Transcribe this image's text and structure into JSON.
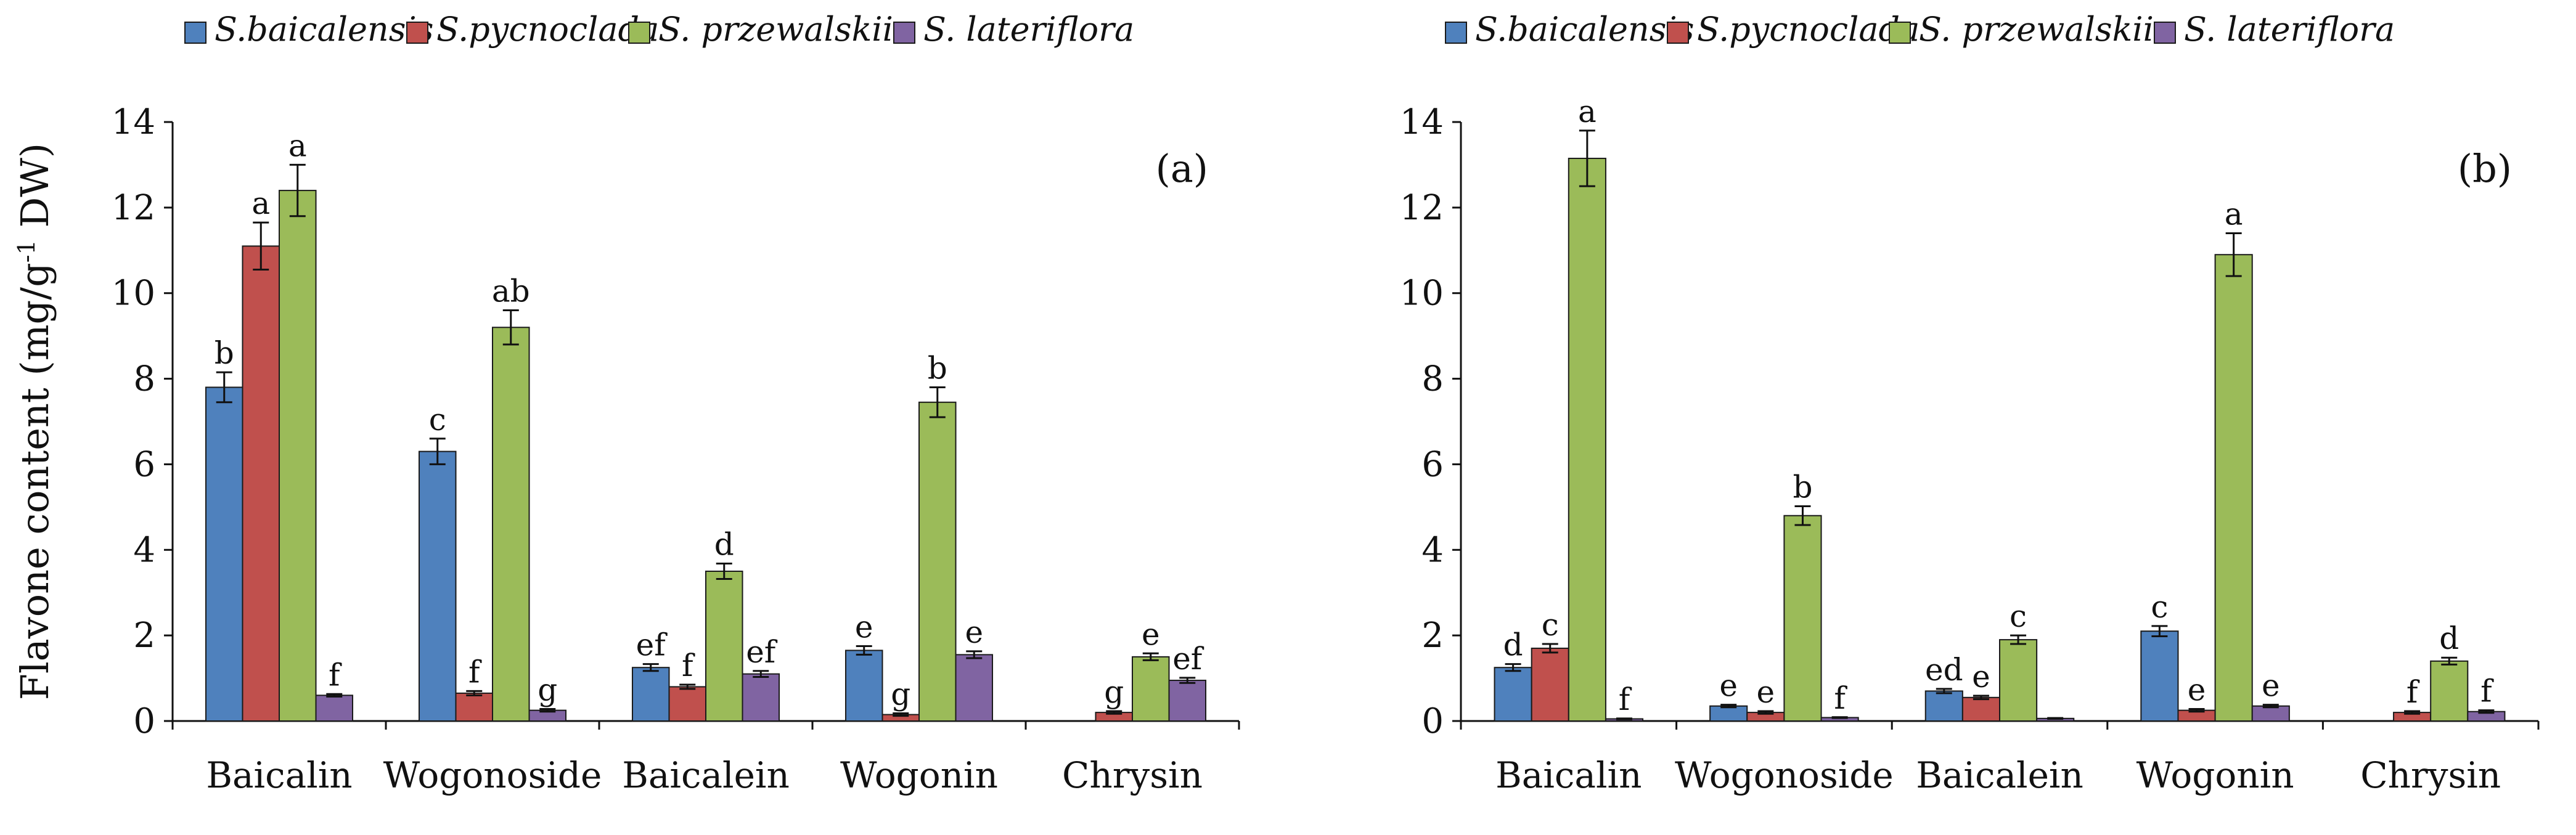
{
  "chart_data": [
    {
      "type": "bar",
      "panel_label": "(a)",
      "ylabel": "Flavone content (mg/g",
      "ylabel_sup": "-1",
      "ylabel_suffix": " DW)",
      "ylim": [
        0,
        14
      ],
      "yticks": [
        "0",
        "2",
        "4",
        "6",
        "8",
        "10",
        "12",
        "14"
      ],
      "categories": [
        "Baicalin",
        "Wogonoside",
        "Baicalein",
        "Wogonin",
        "Chrysin"
      ],
      "legend_position": "top",
      "grid": false,
      "series": [
        {
          "name": "S.baicalensis",
          "color": "#4F81BD",
          "values": [
            7.8,
            6.3,
            1.25,
            1.65,
            0.0
          ],
          "errors": [
            0.35,
            0.3,
            0.08,
            0.1,
            0.0
          ],
          "labels": [
            "b",
            "c",
            "ef",
            "e",
            ""
          ]
        },
        {
          "name": "S.pycnoclada",
          "color": "#C0504D",
          "values": [
            11.1,
            0.65,
            0.8,
            0.15,
            0.2
          ],
          "errors": [
            0.55,
            0.05,
            0.05,
            0.03,
            0.03
          ],
          "labels": [
            "a",
            "f",
            "f",
            "g",
            "g"
          ]
        },
        {
          "name": "S. przewalskii",
          "color": "#9BBB59",
          "values": [
            12.4,
            9.2,
            3.5,
            7.45,
            1.5
          ],
          "errors": [
            0.6,
            0.4,
            0.18,
            0.35,
            0.08
          ],
          "labels": [
            "a",
            "ab",
            "d",
            "b",
            "e"
          ]
        },
        {
          "name": "S. lateriflora",
          "color": "#8064A2",
          "values": [
            0.6,
            0.25,
            1.1,
            1.55,
            0.95
          ],
          "errors": [
            0.03,
            0.03,
            0.07,
            0.08,
            0.06
          ],
          "labels": [
            "f",
            "g",
            "ef",
            "e",
            "ef"
          ]
        }
      ]
    },
    {
      "type": "bar",
      "panel_label": "(b)",
      "ylim": [
        0,
        14
      ],
      "yticks": [
        "0",
        "2",
        "4",
        "6",
        "8",
        "10",
        "12",
        "14"
      ],
      "categories": [
        "Baicalin",
        "Wogonoside",
        "Baicalein",
        "Wogonin",
        "Chrysin"
      ],
      "legend_position": "top",
      "grid": false,
      "series": [
        {
          "name": "S.baicalensis",
          "color": "#4F81BD",
          "values": [
            1.25,
            0.35,
            0.7,
            2.1,
            0.0
          ],
          "errors": [
            0.08,
            0.03,
            0.05,
            0.12,
            0.0
          ],
          "labels": [
            "d",
            "e",
            "ed",
            "c",
            ""
          ]
        },
        {
          "name": "S.pycnoclada",
          "color": "#C0504D",
          "values": [
            1.7,
            0.2,
            0.55,
            0.25,
            0.2
          ],
          "errors": [
            0.1,
            0.03,
            0.04,
            0.03,
            0.03
          ],
          "labels": [
            "c",
            "e",
            "e",
            "e",
            "f"
          ]
        },
        {
          "name": "S. przewalskii",
          "color": "#9BBB59",
          "values": [
            13.15,
            4.8,
            1.9,
            10.9,
            1.4
          ],
          "errors": [
            0.65,
            0.22,
            0.1,
            0.5,
            0.08
          ],
          "labels": [
            "a",
            "b",
            "c",
            "a",
            "d"
          ]
        },
        {
          "name": "S. lateriflora",
          "color": "#8064A2",
          "values": [
            0.05,
            0.08,
            0.06,
            0.35,
            0.22
          ],
          "errors": [
            0.01,
            0.01,
            0.01,
            0.03,
            0.03
          ],
          "labels": [
            "f",
            "f",
            "",
            "e",
            "f"
          ]
        }
      ]
    }
  ]
}
